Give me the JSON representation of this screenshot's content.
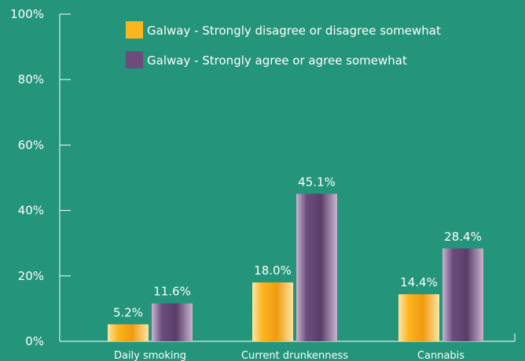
{
  "chart_data": {
    "type": "bar",
    "title": "",
    "xlabel": "",
    "ylabel": "",
    "categories": [
      "Daily smoking",
      "Current drunkenness",
      "Cannabis"
    ],
    "series": [
      {
        "name": "Galway - Strongly disagree or disagree somewhat",
        "values": [
          5.2,
          18.0,
          14.4
        ],
        "color": "#fbb51d",
        "value_labels": [
          "5.2%",
          "18.0%",
          "14.4%"
        ]
      },
      {
        "name": "Galway - Strongly agree or agree somewhat",
        "values": [
          11.6,
          45.1,
          28.4
        ],
        "color": "#6d4c7c",
        "value_labels": [
          "11.6%",
          "45.1%",
          "28.4%"
        ]
      }
    ],
    "ylim": [
      0,
      100
    ],
    "yticks": [
      0,
      20,
      40,
      60,
      80,
      100
    ],
    "ytick_labels": [
      "0%",
      "20%",
      "40%",
      "60%",
      "80%",
      "100%"
    ],
    "legend_position": "top-right",
    "grid": false,
    "colors": {
      "background": "#24947a",
      "axis": "#ffffff",
      "text": "#ffffff"
    }
  }
}
